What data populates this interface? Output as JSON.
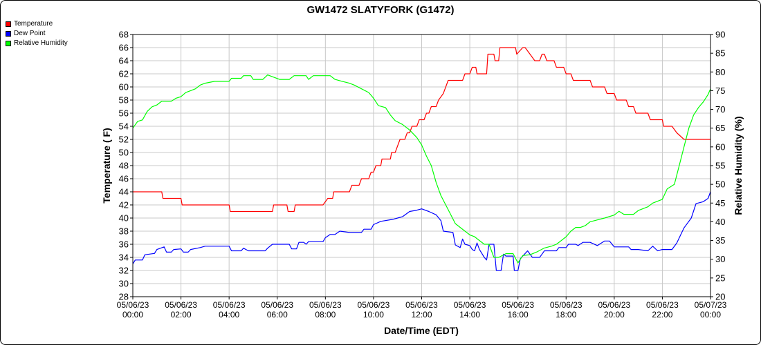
{
  "chart_data": {
    "type": "line",
    "title": "GW1472 SLATYFORK (G1472)",
    "xlabel": "Date/Time (EDT)",
    "ylabel_left": "Temperature ( F)",
    "ylabel_right": "Relative Humidity (%)",
    "ylim_left": [
      28,
      68
    ],
    "ylim_right": [
      20,
      90
    ],
    "xlim_hours": [
      0,
      24
    ],
    "x_unit": "hours after 05/06/23 00:00",
    "grid": true,
    "legend_position": "top-left",
    "x_tick_labels": [
      {
        "date": "05/06/23",
        "time": "00:00"
      },
      {
        "date": "05/06/23",
        "time": "02:00"
      },
      {
        "date": "05/06/23",
        "time": "04:00"
      },
      {
        "date": "05/06/23",
        "time": "06:00"
      },
      {
        "date": "05/06/23",
        "time": "08:00"
      },
      {
        "date": "05/06/23",
        "time": "10:00"
      },
      {
        "date": "05/06/23",
        "time": "12:00"
      },
      {
        "date": "05/06/23",
        "time": "14:00"
      },
      {
        "date": "05/06/23",
        "time": "16:00"
      },
      {
        "date": "05/06/23",
        "time": "18:00"
      },
      {
        "date": "05/06/23",
        "time": "20:00"
      },
      {
        "date": "05/06/23",
        "time": "22:00"
      },
      {
        "date": "05/07/23",
        "time": "00:00"
      }
    ],
    "y_left_ticks": [
      28,
      30,
      32,
      34,
      36,
      38,
      40,
      42,
      44,
      46,
      48,
      50,
      52,
      54,
      56,
      58,
      60,
      62,
      64,
      66,
      68
    ],
    "y_right_ticks": [
      20,
      25,
      30,
      35,
      40,
      45,
      50,
      55,
      60,
      65,
      70,
      75,
      80,
      85,
      90
    ],
    "series": [
      {
        "name": "Temperature",
        "color": "#ff0000",
        "axis": "left",
        "points": [
          [
            0,
            44
          ],
          [
            1.2,
            44
          ],
          [
            1.25,
            43
          ],
          [
            2.0,
            43
          ],
          [
            2.05,
            42
          ],
          [
            4.0,
            42
          ],
          [
            4.05,
            41
          ],
          [
            5.8,
            41
          ],
          [
            5.85,
            42
          ],
          [
            6.4,
            42
          ],
          [
            6.45,
            41
          ],
          [
            6.7,
            41
          ],
          [
            6.75,
            42
          ],
          [
            7.9,
            42
          ],
          [
            8.1,
            43
          ],
          [
            8.3,
            43
          ],
          [
            8.35,
            44
          ],
          [
            9.0,
            44
          ],
          [
            9.1,
            45
          ],
          [
            9.4,
            45
          ],
          [
            9.5,
            46
          ],
          [
            9.8,
            46
          ],
          [
            9.9,
            47
          ],
          [
            10.0,
            47
          ],
          [
            10.1,
            48
          ],
          [
            10.3,
            48
          ],
          [
            10.35,
            49
          ],
          [
            10.7,
            49
          ],
          [
            10.75,
            50
          ],
          [
            10.9,
            50
          ],
          [
            11.0,
            51
          ],
          [
            11.1,
            52
          ],
          [
            11.3,
            52
          ],
          [
            11.4,
            53
          ],
          [
            11.5,
            53
          ],
          [
            11.6,
            54
          ],
          [
            11.8,
            54
          ],
          [
            11.9,
            55
          ],
          [
            12.1,
            55
          ],
          [
            12.2,
            56
          ],
          [
            12.3,
            56
          ],
          [
            12.4,
            57
          ],
          [
            12.6,
            57
          ],
          [
            12.7,
            58
          ],
          [
            12.9,
            59
          ],
          [
            13.0,
            60
          ],
          [
            13.1,
            61
          ],
          [
            13.7,
            61
          ],
          [
            13.8,
            62
          ],
          [
            14.0,
            62
          ],
          [
            14.1,
            63
          ],
          [
            14.25,
            63
          ],
          [
            14.3,
            62
          ],
          [
            14.7,
            62
          ],
          [
            14.75,
            65
          ],
          [
            15.0,
            65
          ],
          [
            15.05,
            64
          ],
          [
            15.2,
            64
          ],
          [
            15.25,
            66
          ],
          [
            15.9,
            66
          ],
          [
            15.95,
            65
          ],
          [
            16.2,
            66
          ],
          [
            16.3,
            66
          ],
          [
            16.5,
            65
          ],
          [
            16.7,
            64
          ],
          [
            16.9,
            64
          ],
          [
            17.0,
            65
          ],
          [
            17.1,
            65
          ],
          [
            17.2,
            64
          ],
          [
            17.5,
            64
          ],
          [
            17.6,
            63
          ],
          [
            17.9,
            63
          ],
          [
            18.0,
            62
          ],
          [
            18.2,
            62
          ],
          [
            18.3,
            61
          ],
          [
            19.0,
            61
          ],
          [
            19.1,
            60
          ],
          [
            19.6,
            60
          ],
          [
            19.7,
            59
          ],
          [
            20.0,
            59
          ],
          [
            20.1,
            58
          ],
          [
            20.5,
            58
          ],
          [
            20.6,
            57
          ],
          [
            20.8,
            57
          ],
          [
            20.9,
            56
          ],
          [
            21.4,
            56
          ],
          [
            21.5,
            55
          ],
          [
            22.0,
            55
          ],
          [
            22.05,
            54
          ],
          [
            22.4,
            54
          ],
          [
            22.6,
            53
          ],
          [
            22.9,
            52
          ],
          [
            24.0,
            52
          ]
        ]
      },
      {
        "name": "Dew Point",
        "color": "#0000ff",
        "axis": "left",
        "points": [
          [
            0,
            33
          ],
          [
            0.1,
            33.6
          ],
          [
            0.4,
            33.6
          ],
          [
            0.5,
            34.4
          ],
          [
            0.9,
            34.6
          ],
          [
            1.0,
            35.2
          ],
          [
            1.3,
            35.6
          ],
          [
            1.4,
            34.8
          ],
          [
            1.6,
            34.8
          ],
          [
            1.7,
            35.2
          ],
          [
            2.0,
            35.3
          ],
          [
            2.1,
            34.8
          ],
          [
            2.3,
            34.8
          ],
          [
            2.4,
            35.2
          ],
          [
            2.8,
            35.5
          ],
          [
            3.0,
            35.7
          ],
          [
            4.0,
            35.7
          ],
          [
            4.1,
            35.0
          ],
          [
            4.5,
            35.0
          ],
          [
            4.6,
            35.4
          ],
          [
            4.8,
            35.0
          ],
          [
            5.5,
            35.0
          ],
          [
            5.6,
            35.4
          ],
          [
            5.8,
            36.0
          ],
          [
            6.5,
            36.0
          ],
          [
            6.6,
            35.3
          ],
          [
            6.8,
            35.3
          ],
          [
            6.9,
            36.3
          ],
          [
            7.1,
            36.3
          ],
          [
            7.2,
            36.0
          ],
          [
            7.3,
            36.4
          ],
          [
            7.9,
            36.4
          ],
          [
            8.0,
            37.0
          ],
          [
            8.2,
            37.5
          ],
          [
            8.4,
            37.5
          ],
          [
            8.6,
            38.0
          ],
          [
            9.0,
            37.8
          ],
          [
            9.5,
            37.8
          ],
          [
            9.6,
            38.3
          ],
          [
            9.9,
            38.3
          ],
          [
            10.0,
            39.0
          ],
          [
            10.3,
            39.5
          ],
          [
            10.8,
            39.8
          ],
          [
            11.0,
            40.0
          ],
          [
            11.2,
            40.2
          ],
          [
            11.5,
            41.0
          ],
          [
            11.8,
            41.2
          ],
          [
            12.0,
            41.4
          ],
          [
            12.3,
            41.0
          ],
          [
            12.6,
            40.5
          ],
          [
            12.8,
            39.6
          ],
          [
            12.9,
            38.0
          ],
          [
            13.3,
            37.8
          ],
          [
            13.4,
            35.9
          ],
          [
            13.6,
            35.5
          ],
          [
            13.7,
            36.8
          ],
          [
            13.8,
            36.0
          ],
          [
            14.0,
            35.8
          ],
          [
            14.1,
            35.2
          ],
          [
            14.2,
            35.0
          ],
          [
            14.3,
            36.2
          ],
          [
            14.4,
            35.2
          ],
          [
            14.6,
            34.0
          ],
          [
            14.7,
            33.6
          ],
          [
            14.8,
            36.0
          ],
          [
            15.0,
            36.0
          ],
          [
            15.1,
            32.0
          ],
          [
            15.3,
            32.0
          ],
          [
            15.4,
            34.5
          ],
          [
            15.5,
            34.2
          ],
          [
            15.8,
            34.2
          ],
          [
            15.85,
            32.0
          ],
          [
            16.0,
            32.0
          ],
          [
            16.1,
            33.8
          ],
          [
            16.4,
            35.0
          ],
          [
            16.6,
            34.0
          ],
          [
            16.9,
            34.0
          ],
          [
            17.0,
            34.5
          ],
          [
            17.1,
            35.0
          ],
          [
            17.6,
            35.0
          ],
          [
            17.7,
            35.5
          ],
          [
            18.0,
            35.5
          ],
          [
            18.1,
            36.0
          ],
          [
            18.4,
            36.0
          ],
          [
            18.5,
            35.8
          ],
          [
            18.7,
            36.3
          ],
          [
            19.0,
            36.3
          ],
          [
            19.3,
            35.8
          ],
          [
            19.6,
            36.5
          ],
          [
            19.8,
            36.5
          ],
          [
            20.0,
            35.6
          ],
          [
            20.6,
            35.6
          ],
          [
            20.7,
            35.2
          ],
          [
            21.0,
            35.2
          ],
          [
            21.4,
            35.0
          ],
          [
            21.6,
            35.7
          ],
          [
            21.8,
            35.0
          ],
          [
            22.0,
            35.2
          ],
          [
            22.4,
            35.2
          ],
          [
            22.6,
            36.2
          ],
          [
            22.9,
            38.5
          ],
          [
            23.2,
            40.0
          ],
          [
            23.4,
            42.2
          ],
          [
            23.7,
            42.5
          ],
          [
            23.9,
            43.0
          ],
          [
            24.0,
            44.0
          ]
        ]
      },
      {
        "name": "Relative Humidity",
        "color": "#00ff00",
        "axis": "right",
        "points": [
          [
            0,
            65
          ],
          [
            0.2,
            66.8
          ],
          [
            0.4,
            67.2
          ],
          [
            0.6,
            69.5
          ],
          [
            0.8,
            70.7
          ],
          [
            1.0,
            71.2
          ],
          [
            1.2,
            72.2
          ],
          [
            1.6,
            72.2
          ],
          [
            1.8,
            73.0
          ],
          [
            2.0,
            73.4
          ],
          [
            2.2,
            74.5
          ],
          [
            2.4,
            75.0
          ],
          [
            2.6,
            75.5
          ],
          [
            2.8,
            76.5
          ],
          [
            3.0,
            77.0
          ],
          [
            3.4,
            77.5
          ],
          [
            4.0,
            77.5
          ],
          [
            4.1,
            78.3
          ],
          [
            4.5,
            78.3
          ],
          [
            4.6,
            79.0
          ],
          [
            4.9,
            79.0
          ],
          [
            5.0,
            78.0
          ],
          [
            5.4,
            78.0
          ],
          [
            5.6,
            79.2
          ],
          [
            6.1,
            78.0
          ],
          [
            6.5,
            78.0
          ],
          [
            6.7,
            79.0
          ],
          [
            7.2,
            79.0
          ],
          [
            7.3,
            78.0
          ],
          [
            7.5,
            79.0
          ],
          [
            8.2,
            79.0
          ],
          [
            8.4,
            78.0
          ],
          [
            8.7,
            77.5
          ],
          [
            9.0,
            77.0
          ],
          [
            9.2,
            76.5
          ],
          [
            9.5,
            75.5
          ],
          [
            9.8,
            74.5
          ],
          [
            10.0,
            73.0
          ],
          [
            10.2,
            71.0
          ],
          [
            10.5,
            70.5
          ],
          [
            10.7,
            68.5
          ],
          [
            10.9,
            67.0
          ],
          [
            11.2,
            66.0
          ],
          [
            11.5,
            64.5
          ],
          [
            11.8,
            62.5
          ],
          [
            12.0,
            60.5
          ],
          [
            12.2,
            57.5
          ],
          [
            12.4,
            55.0
          ],
          [
            12.6,
            50.5
          ],
          [
            12.8,
            47.0
          ],
          [
            13.0,
            44.5
          ],
          [
            13.2,
            42.0
          ],
          [
            13.4,
            39.5
          ],
          [
            13.6,
            38.5
          ],
          [
            13.8,
            37.5
          ],
          [
            14.0,
            36.5
          ],
          [
            14.2,
            36.0
          ],
          [
            14.4,
            35.0
          ],
          [
            14.6,
            34.0
          ],
          [
            14.8,
            34.0
          ],
          [
            15.0,
            30.5
          ],
          [
            15.2,
            30.5
          ],
          [
            15.5,
            31.5
          ],
          [
            15.8,
            31.5
          ],
          [
            16.0,
            29.0
          ],
          [
            16.2,
            31.0
          ],
          [
            16.5,
            31.2
          ],
          [
            16.8,
            32.0
          ],
          [
            17.1,
            33.0
          ],
          [
            17.4,
            33.5
          ],
          [
            17.6,
            34.0
          ],
          [
            17.8,
            35.0
          ],
          [
            18.0,
            36.0
          ],
          [
            18.2,
            37.5
          ],
          [
            18.4,
            38.5
          ],
          [
            18.6,
            38.5
          ],
          [
            18.8,
            39.0
          ],
          [
            19.0,
            40.0
          ],
          [
            19.3,
            40.5
          ],
          [
            19.6,
            41.0
          ],
          [
            20.0,
            41.8
          ],
          [
            20.2,
            42.8
          ],
          [
            20.4,
            42.0
          ],
          [
            20.8,
            42.0
          ],
          [
            21.0,
            43.0
          ],
          [
            21.4,
            44.0
          ],
          [
            21.6,
            45.0
          ],
          [
            22.0,
            46.0
          ],
          [
            22.2,
            48.8
          ],
          [
            22.5,
            50.0
          ],
          [
            22.7,
            55.0
          ],
          [
            22.9,
            60.0
          ],
          [
            23.1,
            65.0
          ],
          [
            23.3,
            68.5
          ],
          [
            23.5,
            70.5
          ],
          [
            23.7,
            72.0
          ],
          [
            23.9,
            74.0
          ],
          [
            24.0,
            75.5
          ]
        ]
      }
    ]
  }
}
